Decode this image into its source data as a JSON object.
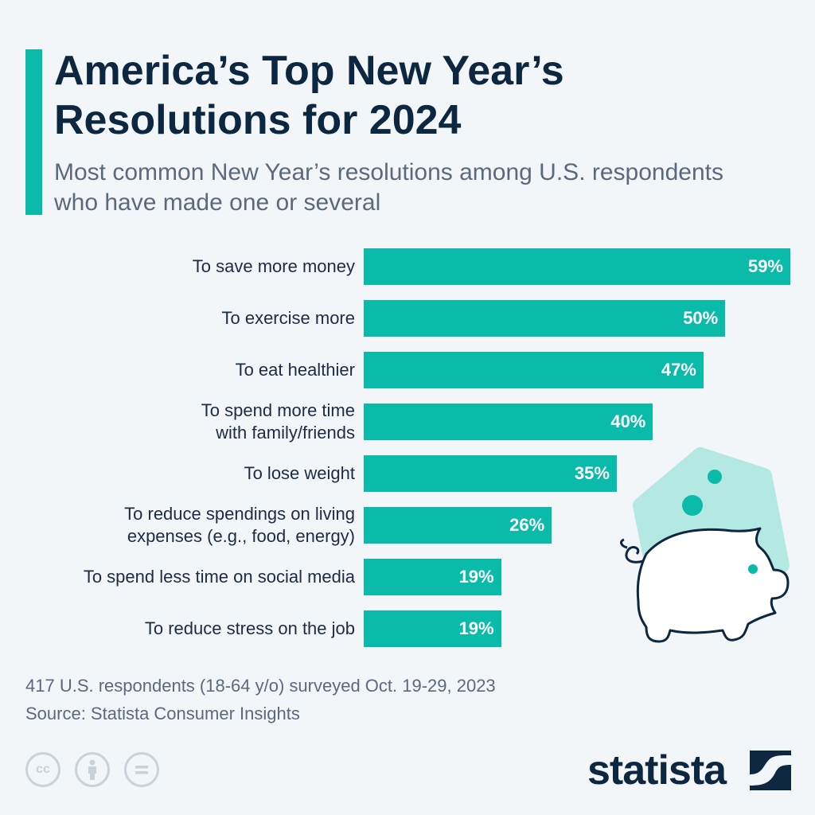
{
  "header": {
    "title": "America’s Top New Year’s Resolutions for 2024",
    "subtitle": "Most common New Year’s resolutions among U.S. respondents who have made one or several"
  },
  "chart_data": {
    "type": "bar",
    "orientation": "horizontal",
    "categories": [
      "To save more money",
      "To exercise more",
      "To eat healthier",
      "To spend more time with family/friends",
      "To lose weight",
      "To reduce spendings on living expenses (e.g., food, energy)",
      "To spend less time on social media",
      "To reduce stress on the job"
    ],
    "category_lines": [
      [
        "To save more money"
      ],
      [
        "To exercise more"
      ],
      [
        "To eat healthier"
      ],
      [
        "To spend more time",
        "with family/friends"
      ],
      [
        "To lose weight"
      ],
      [
        "To reduce spendings on living",
        "expenses (e.g., food, energy)"
      ],
      [
        "To spend less time on social media"
      ],
      [
        "To reduce stress on the job"
      ]
    ],
    "values": [
      59,
      50,
      47,
      40,
      35,
      26,
      19,
      19
    ],
    "data_labels": [
      "59%",
      "50%",
      "47%",
      "40%",
      "35%",
      "26%",
      "19%",
      "19%"
    ],
    "unit": "%",
    "xlim": [
      0,
      59
    ],
    "grid": false,
    "bar_color": "#0abba9"
  },
  "footer": {
    "note": "417 U.S. respondents (18-64 y/o) surveyed Oct. 19-29, 2023",
    "source": "Source: Statista Consumer Insights",
    "license_icons": [
      "cc-icon",
      "attribution-icon",
      "no-derivatives-icon"
    ],
    "logo": "statista"
  },
  "colors": {
    "background": "#f2f6f8",
    "accent": "#0abba9",
    "title": "#0e2741",
    "subtitle": "#5a6a7e"
  }
}
